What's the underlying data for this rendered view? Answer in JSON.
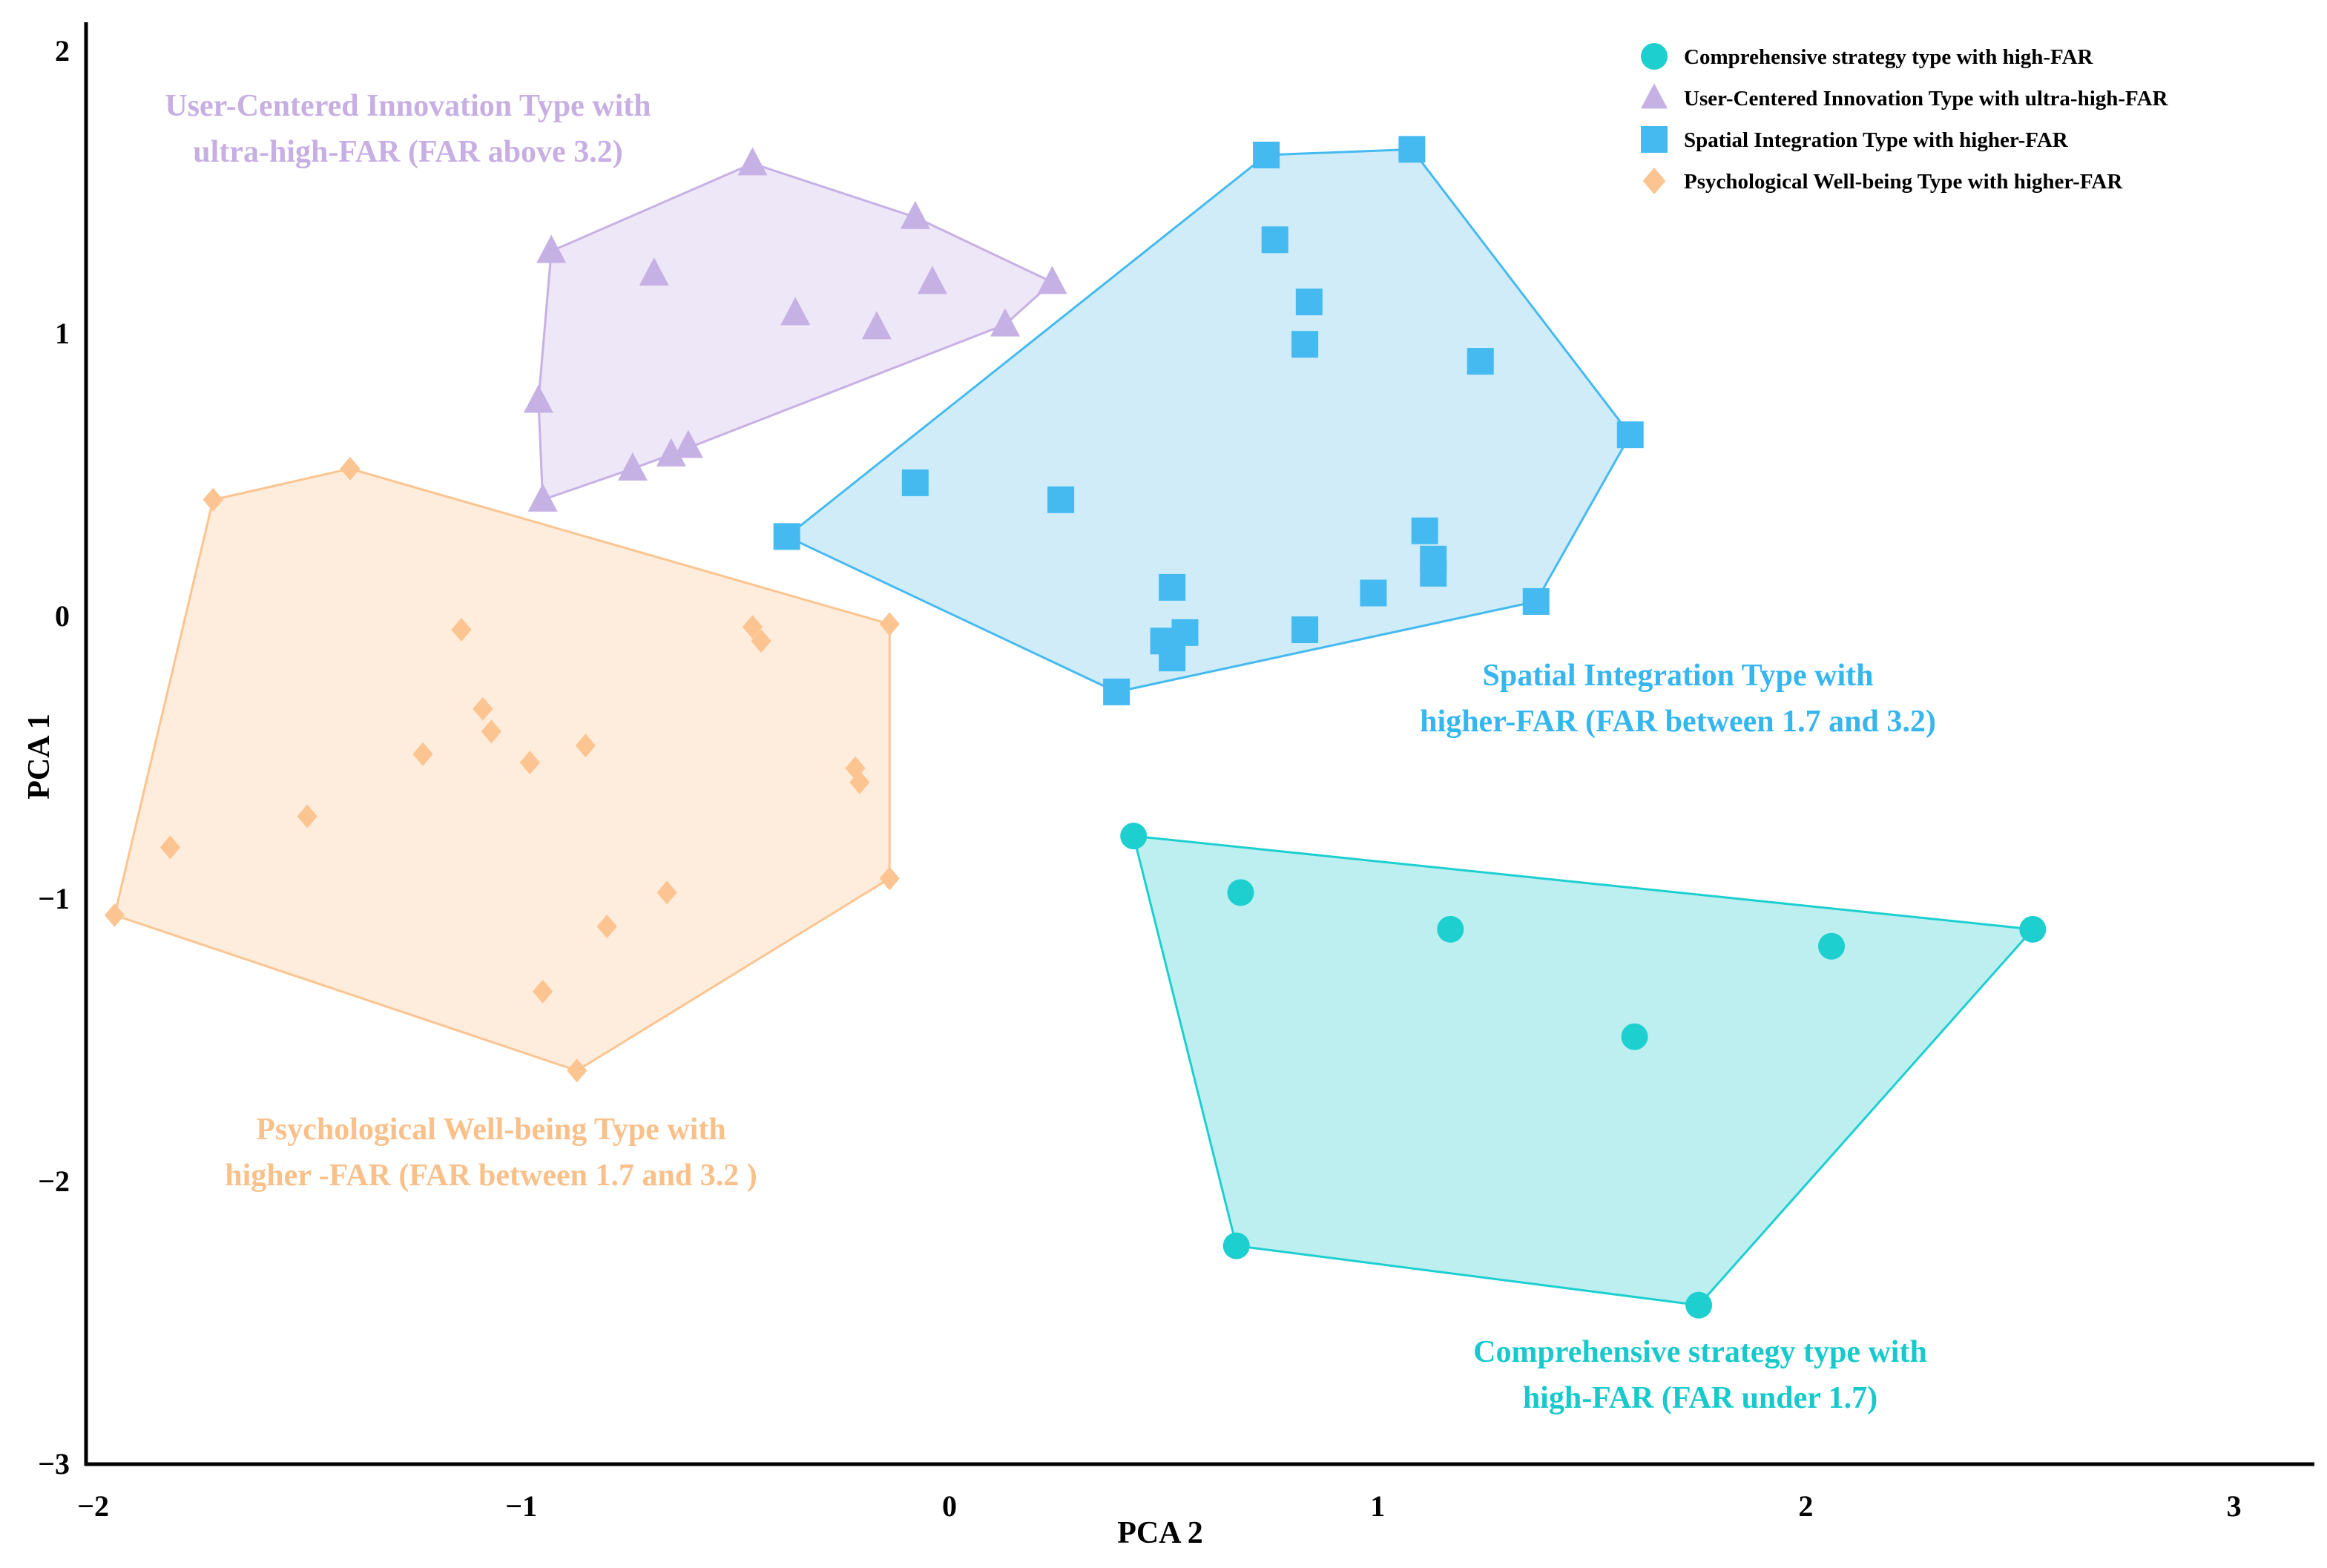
{
  "chart_data": {
    "type": "scatter",
    "xlabel": "PCA 2",
    "ylabel": "PCA 1",
    "xlim": [
      -2,
      3.15
    ],
    "ylim": [
      -3,
      2.1
    ],
    "xticks": [
      "−2",
      "−1",
      "0",
      "1",
      "2",
      "3"
    ],
    "xtick_values": [
      -2,
      -1,
      0,
      1,
      2,
      3
    ],
    "yticks": [
      "2",
      "1",
      "0",
      "−1",
      "−2",
      "−3"
    ],
    "ytick_values": [
      2,
      1,
      0,
      -1,
      -2,
      -3
    ],
    "grid": false,
    "legend_position": "top-right",
    "series": [
      {
        "name": "Comprehensive strategy type with high-FAR",
        "marker": "circle",
        "color": "#1ecfd0",
        "fill": "#b9eef0",
        "annotation": [
          "Comprehensive strategy type with",
          "high-FAR (FAR under 1.7)"
        ],
        "points": [
          [
            0.43,
            -0.78
          ],
          [
            0.68,
            -0.98
          ],
          [
            1.17,
            -1.11
          ],
          [
            2.06,
            -1.17
          ],
          [
            2.53,
            -1.11
          ],
          [
            1.6,
            -1.49
          ],
          [
            0.67,
            -2.23
          ],
          [
            1.75,
            -2.44
          ]
        ]
      },
      {
        "name": "User-Centered Innovation Type with ultra-high-FAR",
        "marker": "triangle",
        "color": "#c6b1e5",
        "fill": "#ede6f7",
        "annotation": [
          "User-Centered Innovation Type with",
          "ultra-high-FAR  (FAR above 3.2)"
        ],
        "points": [
          [
            -0.46,
            1.6
          ],
          [
            -0.08,
            1.41
          ],
          [
            -0.93,
            1.29
          ],
          [
            -0.69,
            1.21
          ],
          [
            -0.04,
            1.18
          ],
          [
            0.24,
            1.18
          ],
          [
            -0.36,
            1.07
          ],
          [
            -0.17,
            1.02
          ],
          [
            0.13,
            1.03
          ],
          [
            -0.96,
            0.76
          ],
          [
            -0.61,
            0.6
          ],
          [
            -0.65,
            0.57
          ],
          [
            -0.74,
            0.52
          ],
          [
            -0.95,
            0.41
          ]
        ]
      },
      {
        "name": "Spatial Integration Type with higher-FAR",
        "marker": "square",
        "color": "#45baf0",
        "fill": "#ceebf9",
        "annotation": [
          "Spatial Integration Type with",
          "higher-FAR (FAR between 1.7 and 3.2)"
        ],
        "points": [
          [
            0.74,
            1.63
          ],
          [
            1.08,
            1.65
          ],
          [
            0.76,
            1.33
          ],
          [
            0.84,
            1.11
          ],
          [
            0.83,
            0.96
          ],
          [
            1.24,
            0.9
          ],
          [
            1.59,
            0.64
          ],
          [
            -0.08,
            0.47
          ],
          [
            0.26,
            0.41
          ],
          [
            -0.38,
            0.28
          ],
          [
            1.11,
            0.3
          ],
          [
            1.13,
            0.2
          ],
          [
            1.13,
            0.15
          ],
          [
            0.52,
            0.1
          ],
          [
            0.99,
            0.08
          ],
          [
            1.37,
            0.05
          ],
          [
            0.83,
            -0.05
          ],
          [
            0.55,
            -0.06
          ],
          [
            0.5,
            -0.09
          ],
          [
            0.52,
            -0.15
          ],
          [
            0.39,
            -0.27
          ]
        ]
      },
      {
        "name": "Psychological Well-being Type with higher-FAR",
        "marker": "diamond",
        "color": "#fcc490",
        "fill": "#feecdb",
        "annotation": [
          "Psychological Well-being Type with",
          "higher -FAR (FAR between 1.7 and 3.2 )"
        ],
        "points": [
          [
            -1.4,
            0.52
          ],
          [
            -1.72,
            0.41
          ],
          [
            -1.14,
            -0.05
          ],
          [
            -0.46,
            -0.04
          ],
          [
            -0.44,
            -0.09
          ],
          [
            -0.14,
            -0.03
          ],
          [
            -1.09,
            -0.33
          ],
          [
            -1.07,
            -0.41
          ],
          [
            -1.23,
            -0.49
          ],
          [
            -0.85,
            -0.46
          ],
          [
            -0.98,
            -0.52
          ],
          [
            -0.22,
            -0.54
          ],
          [
            -0.21,
            -0.59
          ],
          [
            -1.5,
            -0.71
          ],
          [
            -1.82,
            -0.82
          ],
          [
            -0.14,
            -0.93
          ],
          [
            -0.66,
            -0.98
          ],
          [
            -1.95,
            -1.06
          ],
          [
            -0.8,
            -1.1
          ],
          [
            -0.95,
            -1.33
          ],
          [
            -0.87,
            -1.61
          ]
        ]
      }
    ]
  }
}
